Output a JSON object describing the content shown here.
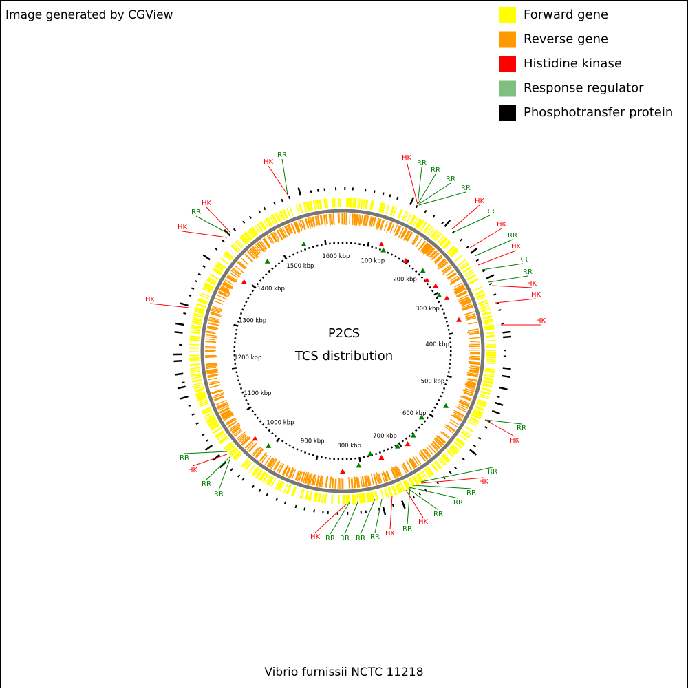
{
  "header": {
    "title": "Image generated by CGView"
  },
  "legend": [
    {
      "label": "Forward gene",
      "color": "#ffff00"
    },
    {
      "label": "Reverse gene",
      "color": "#ff9900"
    },
    {
      "label": "Histidine kinase",
      "color": "#ff0000"
    },
    {
      "label": "Response regulator",
      "color": "#7fbf7f"
    },
    {
      "label": "Phosphotransfer protein",
      "color": "#000000"
    }
  ],
  "center": {
    "title": "P2CS",
    "subtitle": "TCS distribution"
  },
  "ruler": [
    "100 kbp",
    "200 kbp",
    "300 kbp",
    "400 kbp",
    "500 kbp",
    "600 kbp",
    "700 kbp",
    "800 kbp",
    "900 kbp",
    "1000 kbp",
    "1100 kbp",
    "1200 kbp",
    "1300 kbp",
    "1400 kbp",
    "1500 kbp",
    "1600 kbp"
  ],
  "annotations": [
    {
      "label": "RR",
      "color": "#007f00"
    },
    {
      "label": "HK",
      "color": "#ff0000"
    },
    {
      "label": "HK",
      "color": "#ff0000"
    },
    {
      "label": "RR",
      "color": "#007f00"
    },
    {
      "label": "HK",
      "color": "#ff0000"
    },
    {
      "label": "HK",
      "color": "#ff0000"
    },
    {
      "label": "RR",
      "color": "#007f00"
    },
    {
      "label": "HK",
      "color": "#ff0000"
    },
    {
      "label": "RR",
      "color": "#007f00"
    },
    {
      "label": "RR",
      "color": "#007f00"
    },
    {
      "label": "RR",
      "color": "#007f00"
    },
    {
      "label": "HK",
      "color": "#ff0000"
    },
    {
      "label": "RR",
      "color": "#007f00"
    },
    {
      "label": "HK",
      "color": "#ff0000"
    },
    {
      "label": "RR",
      "color": "#007f00"
    },
    {
      "label": "HK",
      "color": "#ff0000"
    },
    {
      "label": "RR",
      "color": "#007f00"
    },
    {
      "label": "RR",
      "color": "#007f00"
    },
    {
      "label": "HK",
      "color": "#ff0000"
    },
    {
      "label": "HK",
      "color": "#ff0000"
    },
    {
      "label": "HK",
      "color": "#ff0000"
    },
    {
      "label": "RR",
      "color": "#007f00"
    },
    {
      "label": "HK",
      "color": "#ff0000"
    },
    {
      "label": "RR",
      "color": "#007f00"
    },
    {
      "label": "HK",
      "color": "#ff0000"
    },
    {
      "label": "RR",
      "color": "#007f00"
    },
    {
      "label": "RR",
      "color": "#007f00"
    },
    {
      "label": "RR",
      "color": "#007f00"
    },
    {
      "label": "HK",
      "color": "#ff0000"
    },
    {
      "label": "RR",
      "color": "#007f00"
    },
    {
      "label": "HK",
      "color": "#ff0000"
    },
    {
      "label": "RR",
      "color": "#007f00"
    },
    {
      "label": "RR",
      "color": "#007f00"
    },
    {
      "label": "RR",
      "color": "#007f00"
    },
    {
      "label": "RR",
      "color": "#007f00"
    },
    {
      "label": "HK",
      "color": "#ff0000"
    },
    {
      "label": "RR",
      "color": "#007f00"
    },
    {
      "label": "HK",
      "color": "#ff0000"
    },
    {
      "label": "RR",
      "color": "#007f00"
    },
    {
      "label": "RR",
      "color": "#007f00"
    }
  ],
  "footer": {
    "caption": "Vibrio furnissii NCTC 11218"
  }
}
